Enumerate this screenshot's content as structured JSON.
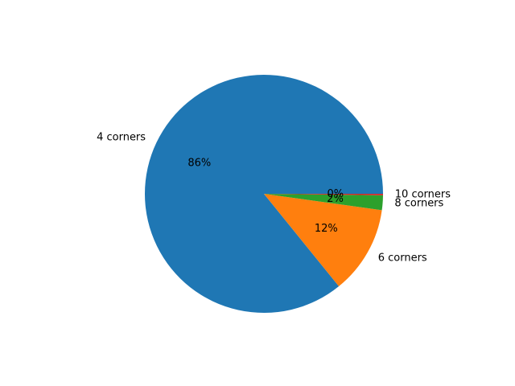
{
  "chart_data": {
    "type": "pie",
    "labels": [
      "4 corners",
      "6 corners",
      "8 corners",
      "10 corners"
    ],
    "values": [
      86,
      12,
      2,
      0.2
    ],
    "pct_labels": [
      "86%",
      "12%",
      "2%",
      "0%"
    ],
    "colors": [
      "#1f77b4",
      "#ff7f0e",
      "#2ca02c",
      "#d62728"
    ],
    "start_angle_deg": 0,
    "direction": "counterclockwise",
    "title": "",
    "legend": "none"
  }
}
